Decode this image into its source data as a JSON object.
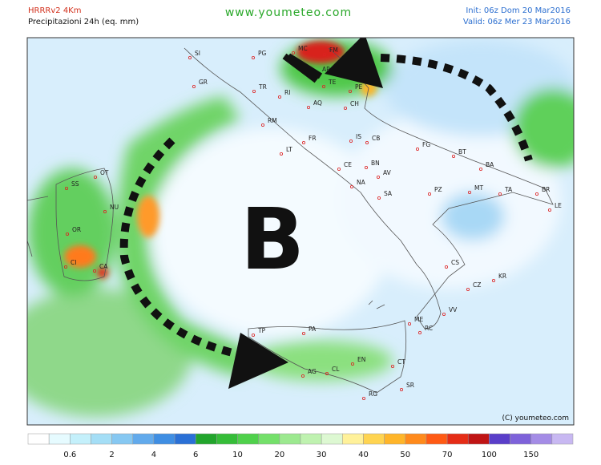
{
  "header": {
    "model": "HRRRv2 4Km",
    "product": "Precipitazioni 24h (eq. mm)",
    "site": "www.youmeteo.com",
    "init": "Init: 06z Dom 20 Mar2016",
    "valid": "Valid: 06z Mer 23 Mar2016"
  },
  "map": {
    "big_label": "B",
    "copyright": "(C) youmeteo.com",
    "cities": [
      "SI",
      "PG",
      "MC",
      "FM",
      "GR",
      "TR",
      "AP",
      "TE",
      "PE",
      "RI",
      "AQ",
      "CH",
      "RM",
      "IS",
      "CB",
      "FG",
      "BT",
      "FR",
      "LT",
      "CE",
      "BN",
      "BA",
      "AV",
      "NA",
      "SA",
      "PZ",
      "MT",
      "BR",
      "TA",
      "LE",
      "OT",
      "SS",
      "NU",
      "OR",
      "CI",
      "CA",
      "CS",
      "KR",
      "CZ",
      "VV",
      "ME",
      "RC",
      "TP",
      "PA",
      "EN",
      "CT",
      "AG",
      "CL",
      "RG",
      "SR"
    ]
  },
  "legend": {
    "colors": [
      "#ffffff",
      "#e6fbff",
      "#c4f0fb",
      "#a4def6",
      "#86c8f2",
      "#62aaec",
      "#3f8ee3",
      "#2a70d6",
      "#22a52c",
      "#35bd38",
      "#4fd14b",
      "#74e06a",
      "#9ce98f",
      "#bff2b0",
      "#ddf8d2",
      "#fff19a",
      "#ffd451",
      "#ffb529",
      "#ff8a1c",
      "#ff5a14",
      "#e52c16",
      "#c01414",
      "#5a3ec9",
      "#7e62da",
      "#a48ce6",
      "#c8b8f2"
    ],
    "labels": [
      0.6,
      2,
      4,
      6,
      10,
      20,
      30,
      40,
      50,
      70,
      100,
      150
    ]
  }
}
